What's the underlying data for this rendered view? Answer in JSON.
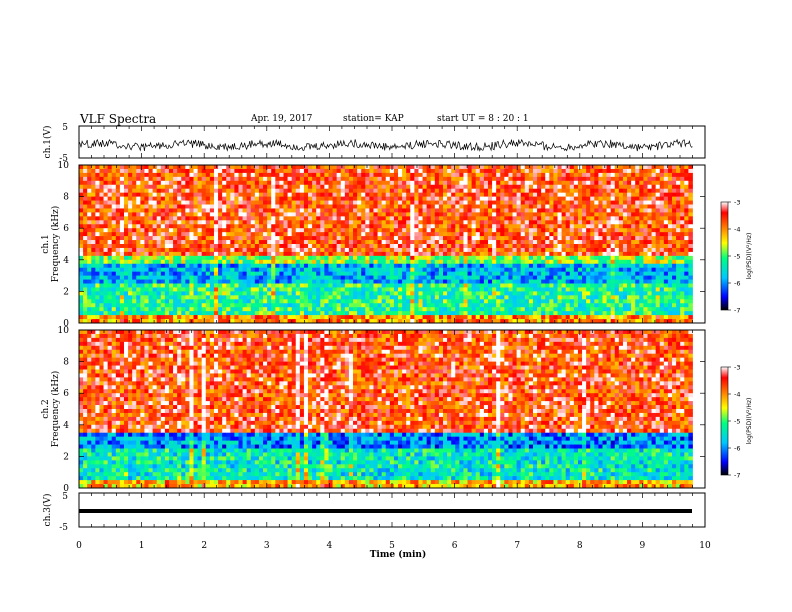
{
  "header": {
    "title": "VLF Spectra",
    "date": "Apr. 19, 2017",
    "station": "station= KAP",
    "start": "start  UT =  8 : 20 : 1"
  },
  "colors": {
    "spectrogram_scale": [
      "#000000",
      "#0000ff",
      "#00c8ff",
      "#00ff80",
      "#ffff00",
      "#ff8000",
      "#ff0000",
      "#ffffff"
    ]
  },
  "chart_data": [
    {
      "type": "line",
      "ylabel": "ch.1(V)",
      "ylim": [
        -5,
        5
      ],
      "yticks": [
        "5",
        "-5"
      ],
      "xlim": [
        0,
        10
      ],
      "trace": "noisy waveform around -1 V, amplitude about ±2 V"
    },
    {
      "type": "heatmap",
      "ylabel": "ch.1\nFrequency (kHz)",
      "ylim": [
        0,
        10
      ],
      "yticks": [
        "0",
        "2",
        "4",
        "6",
        "8",
        "10"
      ],
      "xlim": [
        0,
        9.8
      ],
      "colorbar": {
        "label": "log(PSD)(V²/Hz)",
        "ticks": [
          "-3",
          "-4",
          "-5",
          "-6",
          "-7"
        ],
        "range": [
          -7,
          -3
        ]
      },
      "bands": [
        {
          "from_khz": 0.0,
          "to_khz": 0.6,
          "level": -4.0
        },
        {
          "from_khz": 0.6,
          "to_khz": 2.6,
          "level": -5.2
        },
        {
          "from_khz": 2.6,
          "to_khz": 3.8,
          "level": -5.8
        },
        {
          "from_khz": 3.8,
          "to_khz": 4.3,
          "level": -4.8
        },
        {
          "from_khz": 4.3,
          "to_khz": 10.0,
          "level": -3.6
        }
      ]
    },
    {
      "type": "heatmap",
      "ylabel": "ch.2\nFrequency (kHz)",
      "ylim": [
        0,
        10
      ],
      "yticks": [
        "0",
        "2",
        "4",
        "6",
        "8",
        "10"
      ],
      "xlim": [
        0,
        9.8
      ],
      "colorbar": {
        "label": "log(PSD)(V²/Hz)",
        "ticks": [
          "-3",
          "-4",
          "-5",
          "-6",
          "-7"
        ],
        "range": [
          -7,
          -3
        ]
      },
      "bands": [
        {
          "from_khz": 0.0,
          "to_khz": 0.6,
          "level": -4.2
        },
        {
          "from_khz": 0.6,
          "to_khz": 2.6,
          "level": -5.4
        },
        {
          "from_khz": 2.6,
          "to_khz": 3.5,
          "level": -6.0
        },
        {
          "from_khz": 3.5,
          "to_khz": 3.8,
          "level": -3.5
        },
        {
          "from_khz": 3.8,
          "to_khz": 10.0,
          "level": -3.6
        }
      ]
    },
    {
      "type": "line",
      "ylabel": "ch.3(V)",
      "ylim": [
        -5,
        5
      ],
      "yticks": [
        "5",
        "-5"
      ],
      "xlim": [
        0,
        10
      ],
      "trace": "flat thick line at about -1.5 V from 0 to 9.8 min"
    }
  ],
  "xaxis": {
    "label": "Time  (min)",
    "ticks": [
      "0",
      "1",
      "2",
      "3",
      "4",
      "5",
      "6",
      "7",
      "8",
      "9",
      "10"
    ]
  }
}
